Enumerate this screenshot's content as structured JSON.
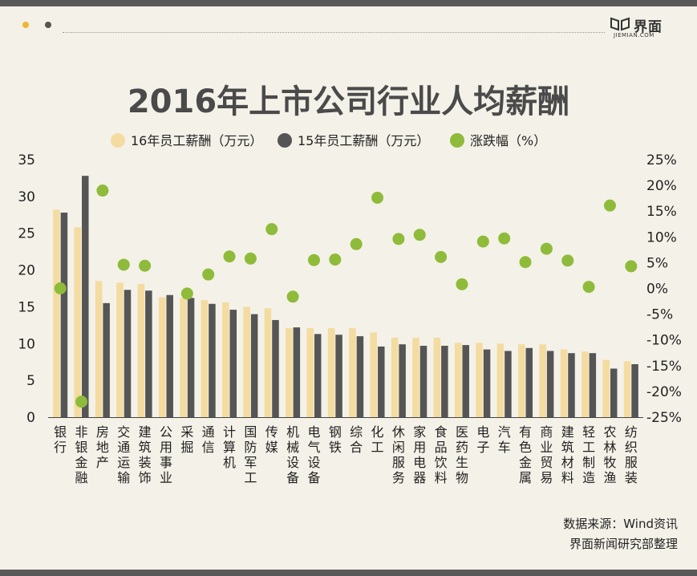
{
  "header": {
    "logo_text": "界面",
    "logo_sub": "JIEMIAN.COM"
  },
  "chart_data": {
    "type": "bar",
    "title": "2016年上市公司行业人均薪酬",
    "categories": [
      "银行",
      "非银金融",
      "房地产",
      "交通运输",
      "建筑装饰",
      "公用事业",
      "采掘",
      "通信",
      "计算机",
      "国防军工",
      "传媒",
      "机械设备",
      "电气设备",
      "钢铁",
      "综合",
      "化工",
      "休闲服务",
      "家用电器",
      "食品饮料",
      "医药生物",
      "电子",
      "汽车",
      "有色金属",
      "商业贸易",
      "建筑材料",
      "轻工制造",
      "农林牧渔",
      "纺织服装"
    ],
    "series": [
      {
        "name": "16年员工薪酬（万元）",
        "axis": "left",
        "color": "#f4dba0",
        "values": [
          28.2,
          25.8,
          18.5,
          18.3,
          18.1,
          16.3,
          16.2,
          15.9,
          15.6,
          15.0,
          14.8,
          12.1,
          12.1,
          12.1,
          12.1,
          11.5,
          10.8,
          10.8,
          10.8,
          10.1,
          10.1,
          10.0,
          9.9,
          9.9,
          9.2,
          8.9,
          7.8,
          7.6
        ]
      },
      {
        "name": "15年员工薪酬（万元）",
        "axis": "left",
        "color": "#555555",
        "values": [
          27.8,
          32.8,
          15.5,
          17.3,
          17.2,
          16.6,
          16.2,
          15.4,
          14.6,
          14.0,
          13.2,
          12.2,
          11.3,
          11.2,
          11.0,
          9.6,
          9.9,
          9.7,
          9.7,
          9.8,
          9.2,
          9.0,
          9.4,
          9.0,
          8.7,
          8.7,
          6.6,
          7.2
        ]
      },
      {
        "name": "涨跌幅（%）",
        "axis": "right",
        "type": "scatter",
        "color": "#8fbb3a",
        "values": [
          0,
          -22,
          19,
          4.6,
          4.4,
          null,
          -1,
          2.7,
          6.2,
          5.8,
          11.5,
          -1.6,
          5.5,
          5.6,
          8.6,
          17.6,
          9.6,
          10.4,
          6.1,
          0.8,
          9.1,
          9.7,
          5.1,
          7.7,
          5.4,
          0.3,
          16.1,
          4.3
        ]
      }
    ],
    "y_left": {
      "min": 0,
      "max": 35,
      "ticks": [
        "0",
        "5",
        "10",
        "15",
        "20",
        "25",
        "30",
        "35"
      ]
    },
    "y_right": {
      "min": -25,
      "max": 25,
      "ticks": [
        "-25%",
        "-20%",
        "-15%",
        "-10%",
        "-5%",
        "0%",
        "5%",
        "10%",
        "15%",
        "20%",
        "25%"
      ]
    },
    "legend_position": "top-center"
  },
  "footer": {
    "source": "数据来源：Wind资讯",
    "credit": "界面新闻研究部整理"
  }
}
